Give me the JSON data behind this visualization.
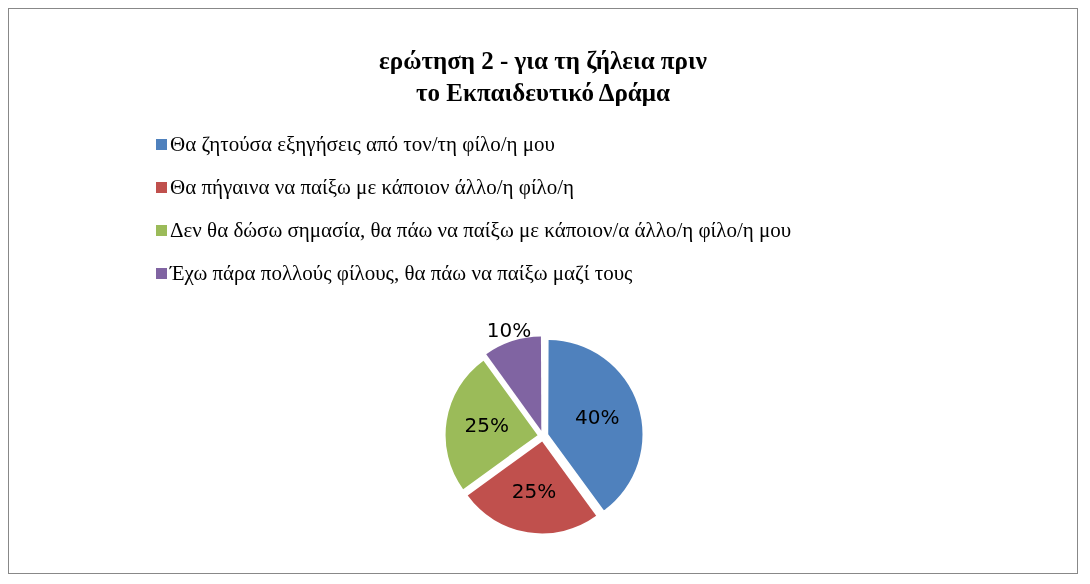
{
  "chart_data": {
    "type": "pie",
    "title": "ερώτηση 2 - για τη ζήλεια πριν\nτο Εκπαιδευτικό Δράμα",
    "categories": [
      "Θα ζητούσα εξηγήσεις από τον/τη φίλο/η μου",
      "Θα πήγαινα να παίξω με κάποιον άλλο/η φίλο/η",
      "Δεν θα δώσω σημασία, θα πάω να παίξω με κάποιον/α άλλο/η φίλο/η μου",
      "Έχω πάρα πολλούς φίλους, θα πάω να παίξω μαζί τους"
    ],
    "values": [
      40,
      25,
      25,
      10
    ],
    "colors": [
      "#4f81bd",
      "#c0504d",
      "#9bbb59",
      "#8064a2"
    ],
    "value_labels": [
      "40%",
      "25%",
      "25%",
      "10%"
    ],
    "legend": "top"
  }
}
